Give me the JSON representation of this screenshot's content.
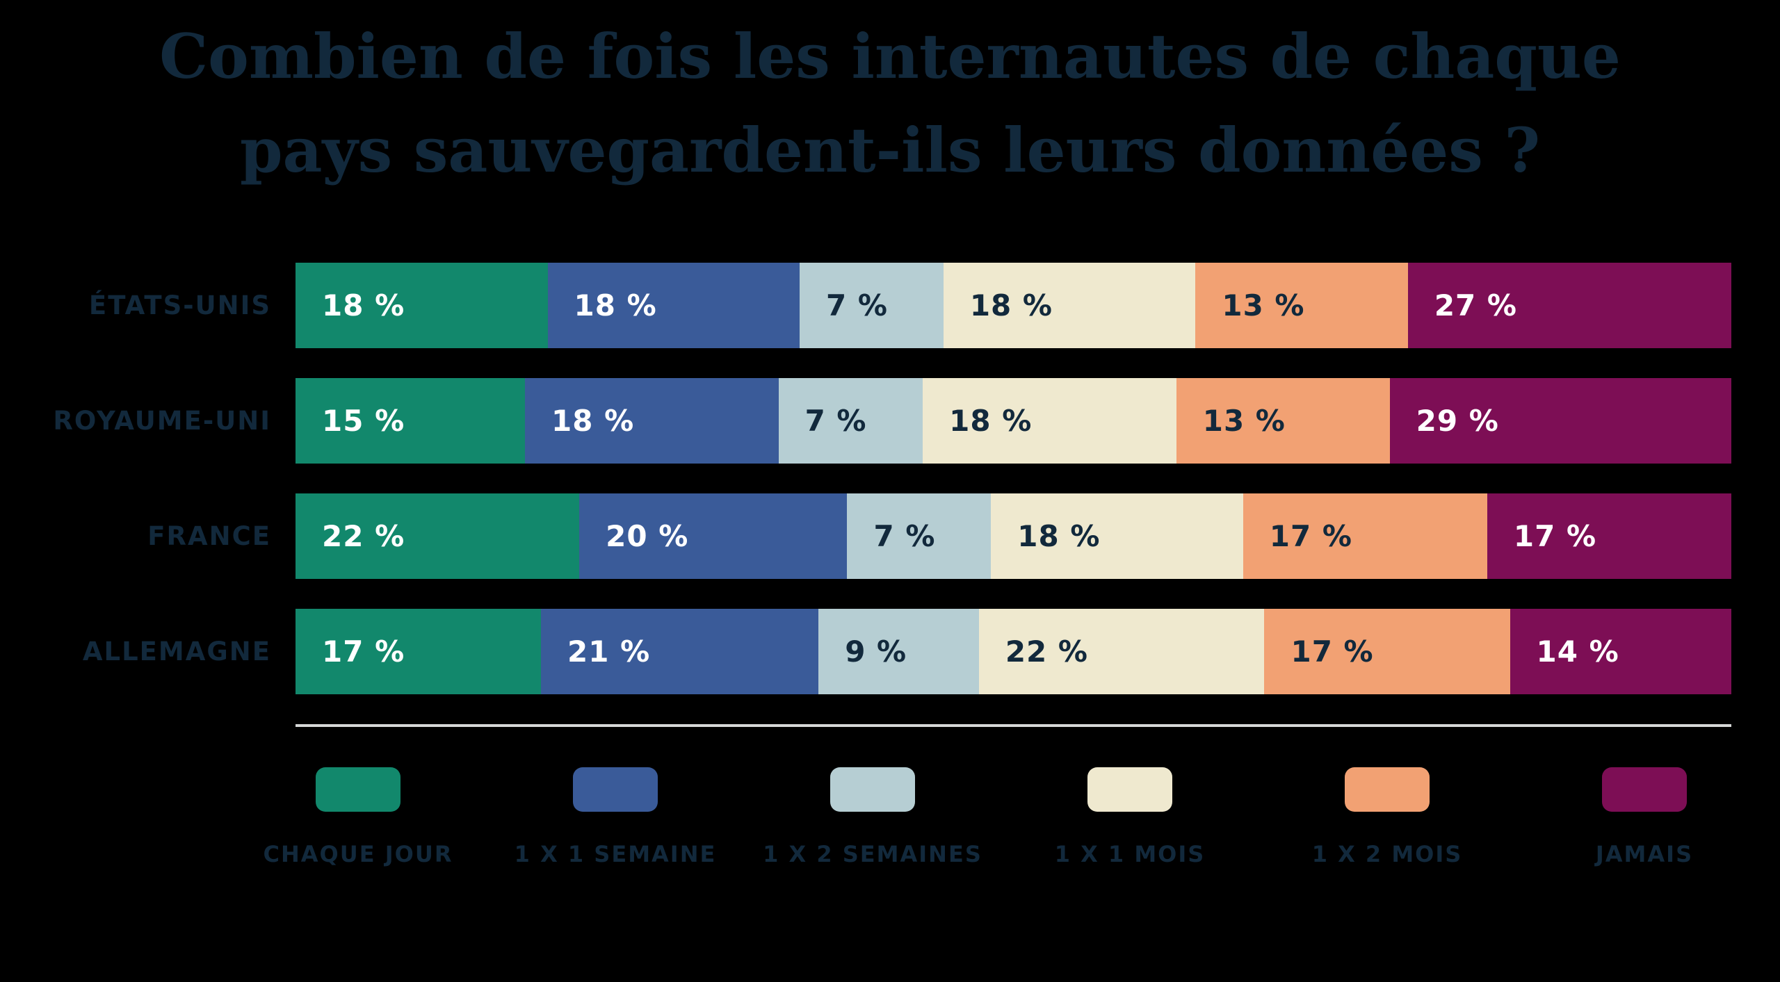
{
  "title": {
    "line1": "Combien de fois les internautes de chaque",
    "line2": "pays sauvegardent-ils leurs données ?"
  },
  "colors": {
    "background": "#000000",
    "navy_text": "#12293C",
    "separator_line": "#D6D8D7"
  },
  "chart_data": {
    "type": "bar",
    "variant": "horizontal-stacked",
    "unit": "%",
    "title": "Combien de fois les internautes de chaque pays sauvegardent-ils leurs données ?",
    "categories": [
      "ÉTATS-UNIS",
      "ROYAUME-UNI",
      "FRANCE",
      "ALLEMAGNE"
    ],
    "series": [
      {
        "name": "CHAQUE JOUR",
        "color": "#12886C",
        "text_color": "#FFFFFF",
        "values": [
          18,
          15,
          22,
          17
        ]
      },
      {
        "name": "1 X 1 SEMAINE",
        "color": "#3A5B99",
        "text_color": "#FFFFFF",
        "values": [
          18,
          18,
          20,
          21
        ]
      },
      {
        "name": "1 X 2 SEMAINES",
        "color": "#B6CED3",
        "text_color": "#12293C",
        "values": [
          7,
          7,
          7,
          9
        ]
      },
      {
        "name": "1 X 1 MOIS",
        "color": "#EFE9CF",
        "text_color": "#12293C",
        "values": [
          18,
          18,
          18,
          22
        ]
      },
      {
        "name": "1 X 2 MOIS",
        "color": "#F2A173",
        "text_color": "#12293C",
        "values": [
          13,
          13,
          17,
          17
        ]
      },
      {
        "name": "JAMAIS",
        "color": "#7D0E55",
        "text_color": "#FFFFFF",
        "values": [
          27,
          29,
          17,
          14
        ]
      }
    ],
    "value_label_format": "{v} %",
    "xlim": [
      0,
      100
    ],
    "grid": false,
    "legend_position": "bottom"
  }
}
